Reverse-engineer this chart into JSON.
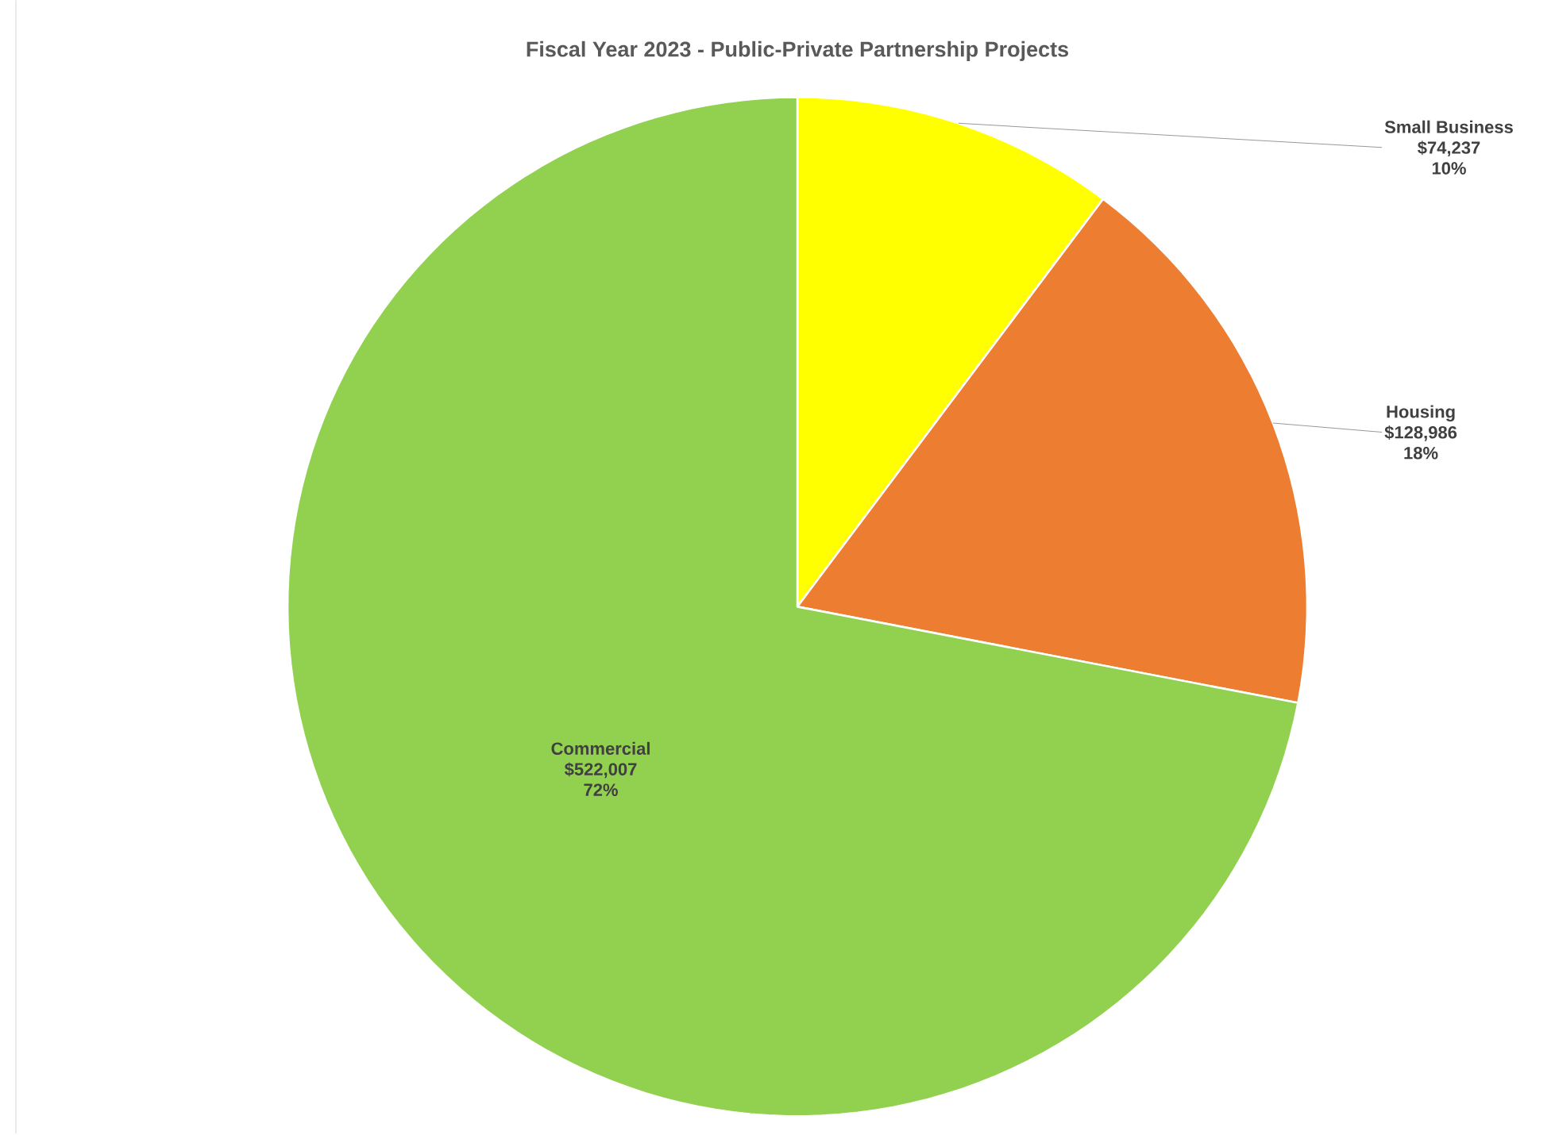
{
  "chart_data": {
    "type": "pie",
    "title": "Fiscal Year 2023 - Public-Private Partnership Projects",
    "categories": [
      "Small Business",
      "Housing",
      "Commercial"
    ],
    "values": [
      74237,
      128986,
      522007
    ],
    "value_labels": [
      "$74,237",
      "$128,986",
      "$522,007"
    ],
    "annotations": [
      "10%",
      "18%",
      "72%"
    ],
    "colors": [
      "#ffff00",
      "#ed7d31",
      "#92d050"
    ]
  }
}
